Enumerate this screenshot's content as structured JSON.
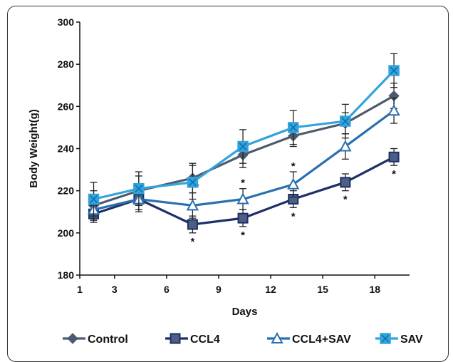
{
  "chart_data": {
    "type": "line",
    "title": "",
    "xlabel": "Days",
    "ylabel": "Body Weight(g)",
    "xlim": [
      1,
      20
    ],
    "ylim": [
      180,
      300
    ],
    "x_ticks": [
      1,
      3,
      6,
      9,
      12,
      15,
      18
    ],
    "y_ticks": [
      180,
      200,
      220,
      240,
      260,
      280,
      300
    ],
    "grid": false,
    "legend_position": "bottom",
    "annotation_symbol": "*",
    "series": [
      {
        "name": "Control",
        "color": "#4d5a6e",
        "marker": "diamond",
        "x": [
          1.8,
          4.4,
          7.5,
          10.4,
          13.3,
          16.3,
          19.1
        ],
        "y": [
          213,
          220,
          226,
          237,
          246,
          252,
          265
        ],
        "err": [
          7,
          7,
          7,
          6,
          5,
          5,
          6
        ],
        "significant": [
          false,
          false,
          false,
          false,
          false,
          false,
          false
        ]
      },
      {
        "name": "CCL4",
        "color": "#1d2f66",
        "marker": "square",
        "x": [
          1.8,
          4.4,
          7.5,
          10.4,
          13.3,
          16.3,
          19.1
        ],
        "y": [
          209,
          216,
          204,
          207,
          216,
          224,
          236
        ],
        "err": [
          4,
          5,
          4,
          4,
          4,
          4,
          4
        ],
        "significant": [
          false,
          false,
          true,
          true,
          true,
          true,
          true
        ]
      },
      {
        "name": "CCL4+SAV",
        "color": "#2a6fb0",
        "marker": "triangle",
        "x": [
          1.8,
          4.4,
          7.5,
          10.4,
          13.3,
          16.3,
          19.1
        ],
        "y": [
          211,
          216,
          213,
          216,
          223,
          241,
          258
        ],
        "err": [
          5,
          6,
          6,
          5,
          6,
          6,
          6
        ],
        "significant": [
          false,
          false,
          true,
          true,
          true,
          false,
          false
        ]
      },
      {
        "name": "SAV",
        "color": "#33a3dc",
        "marker": "square-x",
        "x": [
          1.8,
          4.4,
          7.5,
          10.4,
          13.3,
          16.3,
          19.1
        ],
        "y": [
          216,
          221,
          224,
          241,
          250,
          253,
          277
        ],
        "err": [
          8,
          8,
          8,
          8,
          8,
          8,
          8
        ],
        "significant": [
          false,
          false,
          false,
          false,
          false,
          false,
          false
        ]
      }
    ]
  }
}
